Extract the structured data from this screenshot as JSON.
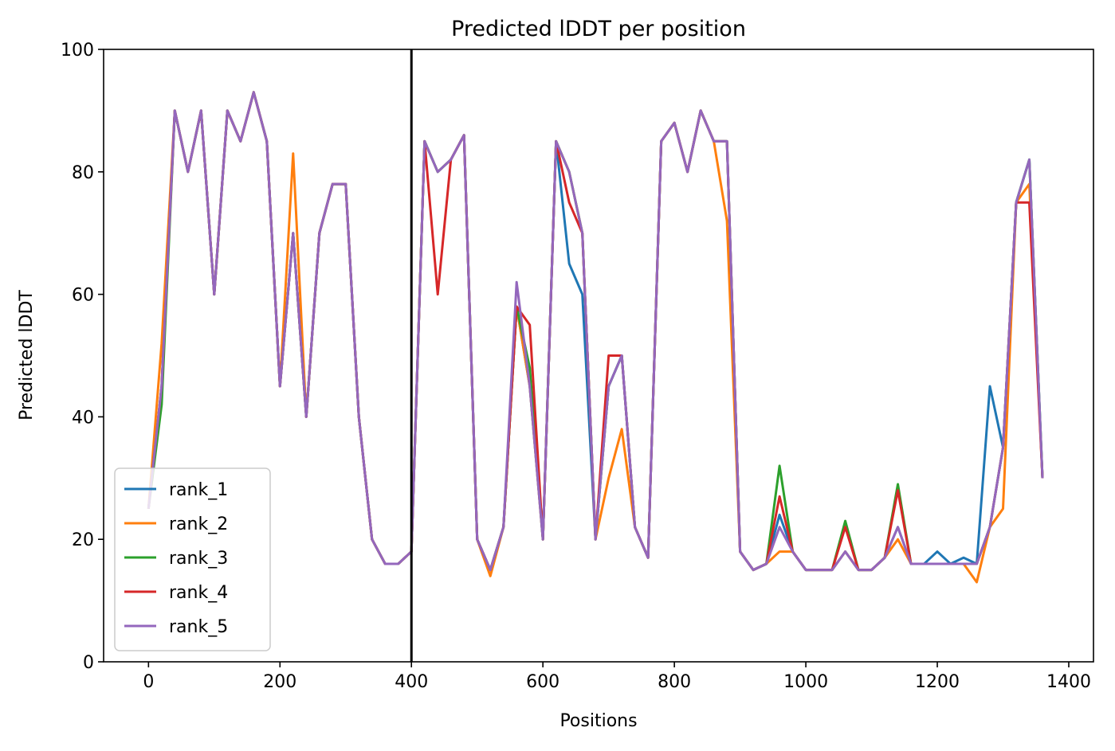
{
  "chart_data": {
    "type": "line",
    "title": "Predicted lDDT per position",
    "xlabel": "Positions",
    "ylabel": "Predicted lDDT",
    "x": [
      0,
      20,
      40,
      60,
      80,
      100,
      120,
      140,
      160,
      180,
      200,
      220,
      240,
      260,
      280,
      300,
      320,
      340,
      360,
      380,
      400,
      420,
      440,
      460,
      480,
      500,
      520,
      540,
      560,
      580,
      600,
      620,
      640,
      660,
      680,
      700,
      720,
      740,
      760,
      780,
      800,
      820,
      840,
      860,
      880,
      900,
      920,
      940,
      960,
      980,
      1000,
      1020,
      1040,
      1060,
      1080,
      1100,
      1120,
      1140,
      1160,
      1180,
      1200,
      1220,
      1240,
      1260,
      1280,
      1300,
      1320,
      1340,
      1360
    ],
    "series": [
      {
        "name": "rank_1",
        "color": "#1f77b4",
        "values": [
          25,
          45,
          90,
          80,
          90,
          60,
          90,
          85,
          93,
          85,
          45,
          70,
          40,
          70,
          78,
          78,
          40,
          20,
          16,
          16,
          18,
          85,
          80,
          82,
          86,
          20,
          15,
          22,
          58,
          45,
          20,
          85,
          65,
          60,
          20,
          45,
          50,
          22,
          17,
          85,
          88,
          80,
          90,
          85,
          85,
          18,
          15,
          16,
          24,
          18,
          15,
          15,
          15,
          18,
          15,
          15,
          17,
          22,
          16,
          16,
          18,
          16,
          17,
          16,
          45,
          35,
          75,
          82,
          30
        ]
      },
      {
        "name": "rank_2",
        "color": "#ff7f0e",
        "values": [
          25,
          52,
          90,
          80,
          90,
          60,
          90,
          85,
          93,
          85,
          45,
          83,
          40,
          70,
          78,
          78,
          40,
          20,
          16,
          16,
          18,
          85,
          80,
          82,
          86,
          20,
          14,
          22,
          58,
          45,
          20,
          85,
          80,
          70,
          20,
          30,
          38,
          22,
          17,
          85,
          88,
          80,
          90,
          85,
          72,
          18,
          15,
          16,
          18,
          18,
          15,
          15,
          15,
          18,
          15,
          15,
          17,
          20,
          16,
          16,
          16,
          16,
          16,
          13,
          22,
          25,
          75,
          78,
          30
        ]
      },
      {
        "name": "rank_3",
        "color": "#2ca02c",
        "values": [
          25,
          42,
          90,
          80,
          90,
          60,
          90,
          85,
          93,
          85,
          45,
          70,
          40,
          70,
          78,
          78,
          40,
          20,
          16,
          16,
          18,
          85,
          80,
          82,
          86,
          20,
          15,
          22,
          58,
          48,
          20,
          85,
          80,
          70,
          20,
          45,
          50,
          22,
          17,
          85,
          88,
          80,
          90,
          85,
          85,
          18,
          15,
          16,
          32,
          18,
          15,
          15,
          15,
          23,
          15,
          15,
          17,
          29,
          16,
          16,
          16,
          16,
          16,
          16,
          22,
          35,
          75,
          82,
          30
        ]
      },
      {
        "name": "rank_4",
        "color": "#d62728",
        "values": [
          25,
          45,
          90,
          80,
          90,
          60,
          90,
          85,
          93,
          85,
          45,
          70,
          40,
          70,
          78,
          78,
          40,
          20,
          16,
          16,
          18,
          85,
          60,
          82,
          86,
          20,
          15,
          22,
          58,
          55,
          20,
          85,
          75,
          70,
          20,
          50,
          50,
          22,
          17,
          85,
          88,
          80,
          90,
          85,
          85,
          18,
          15,
          16,
          27,
          18,
          15,
          15,
          15,
          22,
          15,
          15,
          17,
          28,
          16,
          16,
          16,
          16,
          16,
          16,
          22,
          35,
          75,
          75,
          30
        ]
      },
      {
        "name": "rank_5",
        "color": "#9467bd",
        "values": [
          25,
          45,
          90,
          80,
          90,
          60,
          90,
          85,
          93,
          85,
          45,
          70,
          40,
          70,
          78,
          78,
          40,
          20,
          16,
          16,
          18,
          85,
          80,
          82,
          86,
          20,
          15,
          22,
          62,
          45,
          20,
          85,
          80,
          70,
          20,
          45,
          50,
          22,
          17,
          85,
          88,
          80,
          90,
          85,
          85,
          18,
          15,
          16,
          22,
          18,
          15,
          15,
          15,
          18,
          15,
          15,
          17,
          22,
          16,
          16,
          16,
          16,
          16,
          16,
          22,
          35,
          75,
          82,
          30
        ]
      }
    ],
    "vline": 400,
    "vline_color": "#000000",
    "xlim": [
      -68.3,
      1437.6
    ],
    "ylim": [
      0,
      100
    ],
    "xticks": [
      0,
      200,
      400,
      600,
      800,
      1000,
      1200,
      1400
    ],
    "yticks": [
      0,
      20,
      40,
      60,
      80,
      100
    ],
    "legend": "lower left"
  }
}
